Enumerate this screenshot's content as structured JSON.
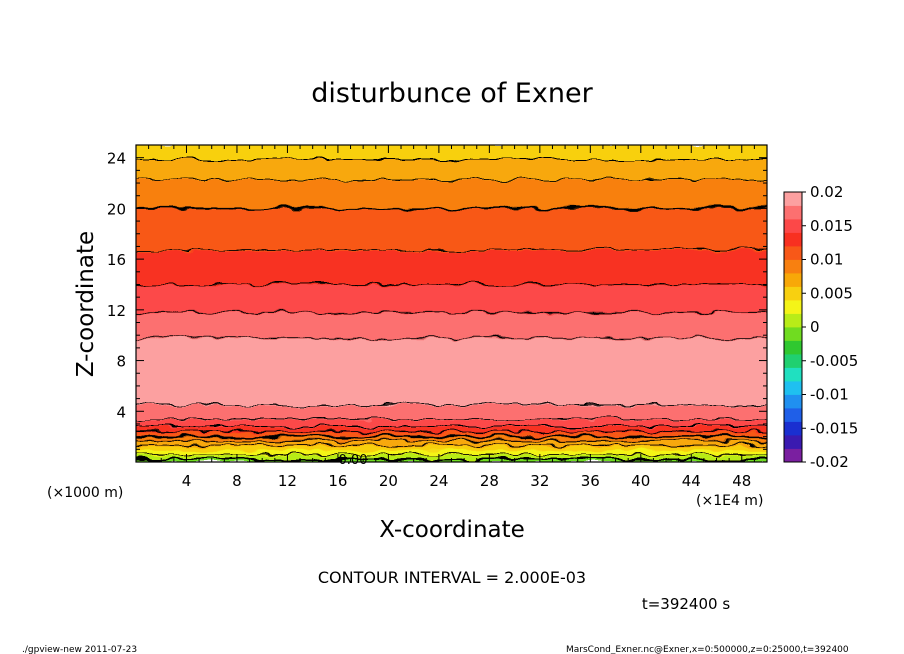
{
  "chart_data": {
    "type": "heatmap",
    "title": "disturbunce of Exner",
    "xlabel": "X-coordinate",
    "ylabel": "Z-coordinate",
    "x_unit_label": "(×1E4 m)",
    "y_unit_label": "(×1000 m)",
    "xlim": [
      0,
      50
    ],
    "ylim": [
      0,
      25
    ],
    "x_ticks": [
      4,
      8,
      12,
      16,
      20,
      24,
      28,
      32,
      36,
      40,
      44,
      48
    ],
    "y_ticks": [
      4,
      8,
      12,
      16,
      20,
      24
    ],
    "contour_interval_text": "CONTOUR INTERVAL = 2.000E-03",
    "contour_label": "0.00",
    "time_text": "t=392400 s",
    "colorbar": {
      "tick_labels": [
        "0.02",
        "0.015",
        "0.01",
        "0.005",
        "0",
        "-0.005",
        "-0.01",
        "-0.015",
        "-0.02"
      ],
      "tick_values": [
        0.02,
        0.015,
        0.01,
        0.005,
        0,
        -0.005,
        -0.01,
        -0.015,
        -0.02
      ],
      "range": [
        -0.02,
        0.02
      ],
      "colors": [
        "#7a1fa0",
        "#3a1ab0",
        "#1a2fd0",
        "#1f5fe8",
        "#2090f0",
        "#1fc0f0",
        "#20e0c0",
        "#20d070",
        "#30c830",
        "#70dc20",
        "#b8ec18",
        "#f4f418",
        "#f8d010",
        "#f8a808",
        "#f88010",
        "#f85818",
        "#f83020",
        "#fc4848",
        "#fc7070",
        "#fca0a0"
      ]
    },
    "vertical_profile": {
      "z": [
        0,
        1,
        2,
        3,
        4,
        5,
        6,
        7,
        8,
        9,
        10,
        11,
        12,
        13,
        14,
        15,
        16,
        17,
        18,
        19,
        20,
        21,
        22,
        23,
        24,
        25
      ],
      "value": [
        -0.001,
        0.004,
        0.01,
        0.015,
        0.0175,
        0.0185,
        0.019,
        0.0193,
        0.0195,
        0.0188,
        0.0178,
        0.0168,
        0.0158,
        0.0149,
        0.014,
        0.0132,
        0.0125,
        0.0118,
        0.0112,
        0.0106,
        0.01,
        0.0092,
        0.0083,
        0.0072,
        0.0058,
        0.0055
      ]
    }
  },
  "footer": {
    "left": "./gpview-new   2011-07-23",
    "right": "MarsCond_Exner.nc@Exner,x=0:500000,z=0:25000,t=392400"
  }
}
